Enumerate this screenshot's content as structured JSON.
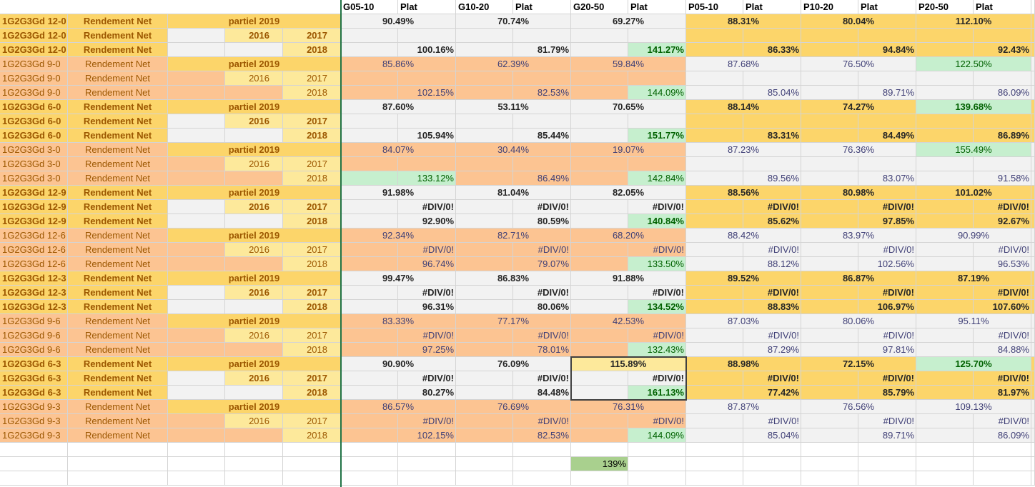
{
  "colors": {
    "label_gold": "#fcd56a",
    "label_orange": "#fcc492",
    "year_light": "#fde99b",
    "block_light": "#f2f2f2",
    "block_gold": "#fcd56a",
    "block_orange": "#fcc492",
    "green_fill": "#c6efce",
    "green_text": "#006100",
    "text_blue": "#3f3f76",
    "text_dark": "#262626",
    "frozen_line": "#217346"
  },
  "headers": [
    {
      "label": "G05-10",
      "plat": "Plat"
    },
    {
      "label": "G10-20",
      "plat": "Plat"
    },
    {
      "label": "G20-50",
      "plat": "Plat"
    },
    {
      "label": "P05-10",
      "plat": "Plat"
    },
    {
      "label": "P10-20",
      "plat": "Plat"
    },
    {
      "label": "P20-50",
      "plat": "Plat"
    }
  ],
  "groups": [
    {
      "label": "1G2G3Gd 12-0",
      "bold": true,
      "label_color": "gold",
      "metric": "Rendement Net",
      "partial_label": "partiel 2019",
      "years": [
        "2016",
        "2017",
        "2018"
      ],
      "g_color": "light",
      "g_bold": true,
      "p_color": "gold",
      "p_bold": true,
      "partial": [
        "90.49%",
        "70.74%",
        "69.27%",
        "88.31%",
        "80.04%",
        "112.10%"
      ],
      "r2017": [
        "",
        "",
        "",
        "",
        "",
        ""
      ],
      "r2018": [
        "100.16%",
        "81.79%",
        "141.27%",
        "86.33%",
        "94.84%",
        "92.43%"
      ],
      "green_partial": [
        false,
        false,
        false,
        false,
        false,
        false
      ],
      "green_2018": [
        false,
        false,
        true,
        false,
        false,
        false
      ]
    },
    {
      "label": "1G2G3Gd 9-0",
      "bold": false,
      "label_color": "orange",
      "metric": "Rendement Net",
      "partial_label": "partiel 2019",
      "years": [
        "2016",
        "2017",
        "2018"
      ],
      "g_color": "orange",
      "g_bold": false,
      "p_color": "light",
      "p_bold": false,
      "partial": [
        "85.86%",
        "62.39%",
        "59.84%",
        "87.68%",
        "76.50%",
        "122.50%"
      ],
      "r2017": [
        "",
        "",
        "",
        "",
        "",
        ""
      ],
      "r2018": [
        "102.15%",
        "82.53%",
        "144.09%",
        "85.04%",
        "89.71%",
        "86.09%"
      ],
      "green_partial": [
        false,
        false,
        false,
        false,
        false,
        true
      ],
      "green_2018": [
        false,
        false,
        true,
        false,
        false,
        false
      ]
    },
    {
      "label": "1G2G3Gd 6-0",
      "bold": true,
      "label_color": "gold",
      "metric": "Rendement Net",
      "partial_label": "partiel 2019",
      "years": [
        "2016",
        "2017",
        "2018"
      ],
      "g_color": "light",
      "g_bold": true,
      "p_color": "gold",
      "p_bold": true,
      "partial": [
        "87.60%",
        "53.11%",
        "70.65%",
        "88.14%",
        "74.27%",
        "139.68%"
      ],
      "r2017": [
        "",
        "",
        "",
        "",
        "",
        ""
      ],
      "r2018": [
        "105.94%",
        "85.44%",
        "151.77%",
        "83.31%",
        "84.49%",
        "86.89%"
      ],
      "green_partial": [
        false,
        false,
        false,
        false,
        false,
        true
      ],
      "green_2018": [
        false,
        false,
        true,
        false,
        false,
        false
      ]
    },
    {
      "label": "1G2G3Gd 3-0",
      "bold": false,
      "label_color": "orange",
      "metric": "Rendement Net",
      "partial_label": "partiel 2019",
      "years": [
        "2016",
        "2017",
        "2018"
      ],
      "g_color": "orange",
      "g_bold": false,
      "p_color": "light",
      "p_bold": false,
      "partial": [
        "84.07%",
        "30.44%",
        "19.07%",
        "87.23%",
        "76.36%",
        "155.49%"
      ],
      "r2017": [
        "",
        "",
        "",
        "",
        "",
        ""
      ],
      "r2018": [
        "133.12%",
        "86.49%",
        "142.84%",
        "89.56%",
        "83.07%",
        "91.58%"
      ],
      "green_partial": [
        false,
        false,
        false,
        false,
        false,
        true
      ],
      "green_2018": [
        true,
        false,
        true,
        false,
        false,
        false
      ]
    },
    {
      "label": "1G2G3Gd 12-9",
      "bold": true,
      "label_color": "gold",
      "metric": "Rendement Net",
      "partial_label": "partiel 2019",
      "years": [
        "2016",
        "2017",
        "2018"
      ],
      "g_color": "light",
      "g_bold": true,
      "p_color": "gold",
      "p_bold": true,
      "partial": [
        "91.98%",
        "81.04%",
        "82.05%",
        "88.56%",
        "80.98%",
        "101.02%"
      ],
      "r2017": [
        "#DIV/0!",
        "#DIV/0!",
        "#DIV/0!",
        "#DIV/0!",
        "#DIV/0!",
        "#DIV/0!"
      ],
      "r2018": [
        "92.90%",
        "80.59%",
        "140.84%",
        "85.62%",
        "97.85%",
        "92.67%"
      ],
      "green_partial": [
        false,
        false,
        false,
        false,
        false,
        false
      ],
      "green_2018": [
        false,
        false,
        true,
        false,
        false,
        false
      ]
    },
    {
      "label": "1G2G3Gd 12-6",
      "bold": false,
      "label_color": "orange",
      "metric": "Rendement Net",
      "partial_label": "partiel 2019",
      "years": [
        "2016",
        "2017",
        "2018"
      ],
      "g_color": "orange",
      "g_bold": false,
      "p_color": "light",
      "p_bold": false,
      "partial": [
        "92.34%",
        "82.71%",
        "68.20%",
        "88.42%",
        "83.97%",
        "90.99%"
      ],
      "r2017": [
        "#DIV/0!",
        "#DIV/0!",
        "#DIV/0!",
        "#DIV/0!",
        "#DIV/0!",
        "#DIV/0!"
      ],
      "r2018": [
        "96.74%",
        "79.07%",
        "133.50%",
        "88.12%",
        "102.56%",
        "96.53%"
      ],
      "green_partial": [
        false,
        false,
        false,
        false,
        false,
        false
      ],
      "green_2018": [
        false,
        false,
        true,
        false,
        false,
        false
      ]
    },
    {
      "label": "1G2G3Gd 12-3",
      "bold": true,
      "label_color": "gold",
      "metric": "Rendement Net",
      "partial_label": "partiel 2019",
      "years": [
        "2016",
        "2017",
        "2018"
      ],
      "g_color": "light",
      "g_bold": true,
      "p_color": "gold",
      "p_bold": true,
      "partial": [
        "99.47%",
        "86.83%",
        "91.88%",
        "89.52%",
        "86.87%",
        "87.19%"
      ],
      "r2017": [
        "#DIV/0!",
        "#DIV/0!",
        "#DIV/0!",
        "#DIV/0!",
        "#DIV/0!",
        "#DIV/0!"
      ],
      "r2018": [
        "96.31%",
        "80.06%",
        "134.52%",
        "88.83%",
        "106.97%",
        "107.60%"
      ],
      "green_partial": [
        false,
        false,
        false,
        false,
        false,
        false
      ],
      "green_2018": [
        false,
        false,
        true,
        false,
        false,
        false
      ]
    },
    {
      "label": "1G2G3Gd 9-6",
      "bold": false,
      "label_color": "orange",
      "metric": "Rendement Net",
      "partial_label": "partiel 2019",
      "years": [
        "2016",
        "2017",
        "2018"
      ],
      "g_color": "orange",
      "g_bold": false,
      "p_color": "light",
      "p_bold": false,
      "partial": [
        "83.33%",
        "77.17%",
        "42.53%",
        "87.03%",
        "80.06%",
        "95.11%"
      ],
      "r2017": [
        "#DIV/0!",
        "#DIV/0!",
        "#DIV/0!",
        "#DIV/0!",
        "#DIV/0!",
        "#DIV/0!"
      ],
      "r2018": [
        "97.25%",
        "78.01%",
        "132.43%",
        "87.29%",
        "97.81%",
        "84.88%"
      ],
      "green_partial": [
        false,
        false,
        false,
        false,
        false,
        false
      ],
      "green_2018": [
        false,
        false,
        true,
        false,
        false,
        false
      ]
    },
    {
      "label": "1G2G3Gd 6-3",
      "bold": true,
      "label_color": "gold",
      "metric": "Rendement Net",
      "partial_label": "partiel 2019",
      "years": [
        "2016",
        "2017",
        "2018"
      ],
      "g_color": "light",
      "g_bold": true,
      "p_color": "gold",
      "p_bold": true,
      "partial": [
        "90.90%",
        "76.09%",
        "115.89%",
        "88.98%",
        "72.15%",
        "125.70%"
      ],
      "r2017": [
        "#DIV/0!",
        "#DIV/0!",
        "#DIV/0!",
        "#DIV/0!",
        "#DIV/0!",
        "#DIV/0!"
      ],
      "r2018": [
        "80.27%",
        "84.48%",
        "161.13%",
        "77.42%",
        "85.79%",
        "81.97%"
      ],
      "green_partial": [
        false,
        false,
        false,
        false,
        false,
        true
      ],
      "green_2018": [
        false,
        false,
        true,
        false,
        false,
        false
      ],
      "selected_partial_index": 2
    },
    {
      "label": "1G2G3Gd 9-3",
      "bold": false,
      "label_color": "orange",
      "metric": "Rendement Net",
      "partial_label": "partiel 2019",
      "years": [
        "2016",
        "2017",
        "2018"
      ],
      "g_color": "orange",
      "g_bold": false,
      "p_color": "light",
      "p_bold": false,
      "partial": [
        "86.57%",
        "76.69%",
        "76.31%",
        "87.87%",
        "76.56%",
        "109.13%"
      ],
      "r2017": [
        "#DIV/0!",
        "#DIV/0!",
        "#DIV/0!",
        "#DIV/0!",
        "#DIV/0!",
        "#DIV/0!"
      ],
      "r2018": [
        "102.15%",
        "82.53%",
        "144.09%",
        "85.04%",
        "89.71%",
        "86.09%"
      ],
      "green_partial": [
        false,
        false,
        false,
        false,
        false,
        false
      ],
      "green_2018": [
        false,
        false,
        true,
        false,
        false,
        false
      ]
    }
  ],
  "summary_cell": "139%",
  "summary_color": "#a9d08e"
}
